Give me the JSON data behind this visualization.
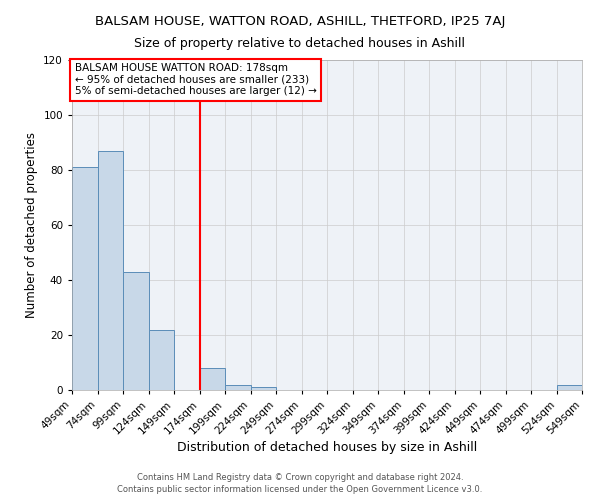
{
  "title": "BALSAM HOUSE, WATTON ROAD, ASHILL, THETFORD, IP25 7AJ",
  "subtitle": "Size of property relative to detached houses in Ashill",
  "xlabel": "Distribution of detached houses by size in Ashill",
  "ylabel": "Number of detached properties",
  "bar_color": "#c8d8e8",
  "bar_edge_color": "#5b8db8",
  "background_color": "#eef2f7",
  "grid_color": "#cccccc",
  "bins_left": [
    49,
    74,
    99,
    124,
    149,
    174,
    199,
    224,
    249,
    274,
    299,
    324,
    349,
    374,
    399,
    424,
    449,
    474,
    499,
    524
  ],
  "bins_right": [
    74,
    99,
    124,
    149,
    174,
    199,
    224,
    249,
    274,
    299,
    324,
    349,
    374,
    399,
    424,
    449,
    474,
    499,
    524,
    549
  ],
  "counts": [
    81,
    87,
    43,
    22,
    0,
    8,
    2,
    1,
    0,
    0,
    0,
    0,
    0,
    0,
    0,
    0,
    0,
    0,
    0,
    2
  ],
  "tick_labels": [
    "49sqm",
    "74sqm",
    "99sqm",
    "124sqm",
    "149sqm",
    "174sqm",
    "199sqm",
    "224sqm",
    "249sqm",
    "274sqm",
    "299sqm",
    "324sqm",
    "349sqm",
    "374sqm",
    "399sqm",
    "424sqm",
    "449sqm",
    "474sqm",
    "499sqm",
    "524sqm",
    "549sqm"
  ],
  "tick_positions": [
    49,
    74,
    99,
    124,
    149,
    174,
    199,
    224,
    249,
    274,
    299,
    324,
    349,
    374,
    399,
    424,
    449,
    474,
    499,
    524,
    549
  ],
  "red_line_x": 174,
  "xlim": [
    49,
    549
  ],
  "ylim": [
    0,
    120
  ],
  "yticks": [
    0,
    20,
    40,
    60,
    80,
    100,
    120
  ],
  "annotation_title": "BALSAM HOUSE WATTON ROAD: 178sqm",
  "annotation_line1": "← 95% of detached houses are smaller (233)",
  "annotation_line2": "5% of semi-detached houses are larger (12) →",
  "footer1": "Contains HM Land Registry data © Crown copyright and database right 2024.",
  "footer2": "Contains public sector information licensed under the Open Government Licence v3.0.",
  "title_fontsize": 9.5,
  "subtitle_fontsize": 9,
  "xlabel_fontsize": 9,
  "ylabel_fontsize": 8.5,
  "tick_fontsize": 7.5,
  "annotation_fontsize": 7.5,
  "footer_fontsize": 6
}
